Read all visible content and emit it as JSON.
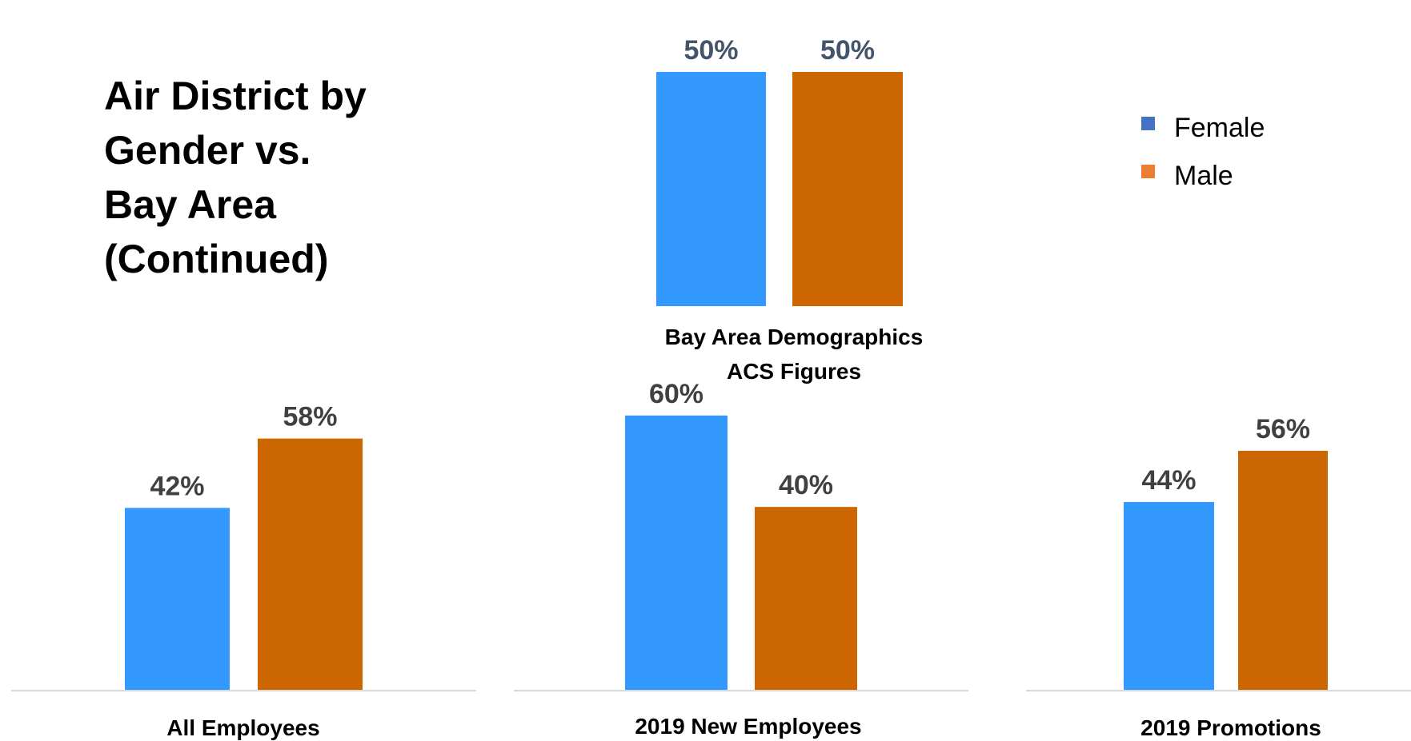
{
  "title_lines": [
    "Air District by",
    "Gender vs.",
    "Bay Area",
    "(Continued)"
  ],
  "legend": [
    {
      "label": "Female",
      "color": "#4472c4"
    },
    {
      "label": "Male",
      "color": "#ed7d31"
    }
  ],
  "colors": {
    "female_bar": "#3399ff",
    "male_bar": "#cc6600",
    "axis": "#d9d9d9"
  },
  "chart_data": [
    {
      "type": "bar",
      "category_lines": [
        "Bay Area Demographics",
        "ACS Figures"
      ],
      "series": [
        {
          "name": "Female",
          "values": [
            50
          ]
        },
        {
          "name": "Male",
          "values": [
            50
          ]
        }
      ],
      "data_labels": [
        "50%",
        "50%"
      ],
      "ylim": [
        0,
        60
      ]
    },
    {
      "type": "bar",
      "category_lines": [
        "All Employees"
      ],
      "series": [
        {
          "name": "Female",
          "values": [
            42
          ]
        },
        {
          "name": "Male",
          "values": [
            58
          ]
        }
      ],
      "data_labels": [
        "42%",
        "58%"
      ],
      "ylim": [
        0,
        70
      ]
    },
    {
      "type": "bar",
      "category_lines": [
        "2019 New Employees"
      ],
      "series": [
        {
          "name": "Female",
          "values": [
            60
          ]
        },
        {
          "name": "Male",
          "values": [
            40
          ]
        }
      ],
      "data_labels": [
        "60%",
        "40%"
      ],
      "ylim": [
        0,
        70
      ]
    },
    {
      "type": "bar",
      "category_lines": [
        "2019 Promotions"
      ],
      "series": [
        {
          "name": "Female",
          "values": [
            44
          ]
        },
        {
          "name": "Male",
          "values": [
            56
          ]
        }
      ],
      "data_labels": [
        "44%",
        "56%"
      ],
      "ylim": [
        0,
        70
      ]
    }
  ]
}
